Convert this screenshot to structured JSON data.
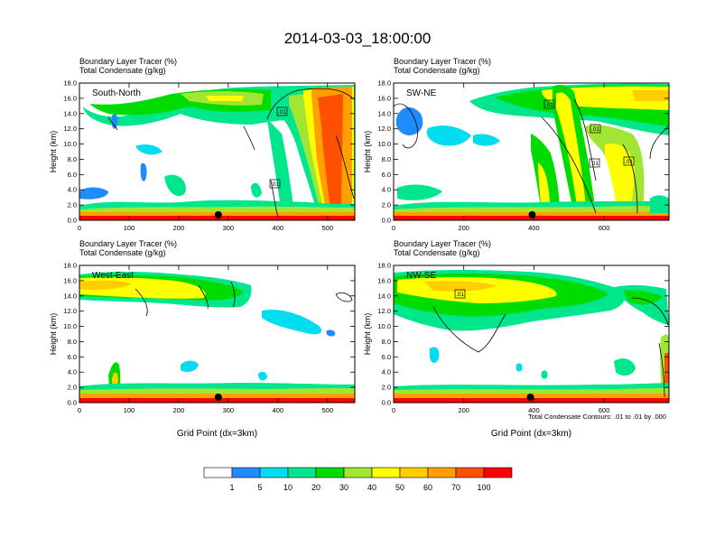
{
  "title": "2014-03-03_18:00:00",
  "footnote": "Total Condensate Contours: .01 to .01 by .000",
  "chart_data": [
    {
      "type": "heatmap",
      "label": "South-North",
      "subtitle_line1": "Boundary Layer Tracer    (%)",
      "subtitle_line2": "Total Condensate    (g/kg)",
      "ylabel": "Height (km)",
      "xlabel": "",
      "xlim": [
        0,
        555
      ],
      "ylim": [
        0,
        18
      ],
      "xticks": [
        "0",
        "100",
        "200",
        "300",
        "400",
        "500"
      ],
      "xtick_values": [
        0,
        100,
        200,
        300,
        400,
        500
      ],
      "yticks": [
        "0.0",
        "2.0",
        "4.0",
        "6.0",
        "8.0",
        "10.0",
        "12.0",
        "14.0",
        "16.0",
        "18.0"
      ],
      "ytick_values": [
        0,
        2,
        4,
        6,
        8,
        10,
        12,
        14,
        16,
        18
      ],
      "contour_labels": [
        ".01",
        ".01"
      ],
      "marker_x": 280,
      "features": [
        {
          "x0": 20,
          "x1": 555,
          "h0": 13,
          "h1": 17.5,
          "level": 3
        },
        {
          "x0": 440,
          "x1": 540,
          "h0": 2,
          "h1": 17.5,
          "level": 8
        },
        {
          "x0": 0,
          "x1": 555,
          "h0": 0,
          "h1": 1.2,
          "level": 9
        }
      ]
    },
    {
      "type": "heatmap",
      "label": "SW-NE",
      "subtitle_line1": "Boundary Layer Tracer    (%)",
      "subtitle_line2": "Total Condensate    (g/kg)",
      "ylabel": "Height (km)",
      "xlabel": "",
      "xlim": [
        0,
        785
      ],
      "ylim": [
        0,
        18
      ],
      "xticks": [
        "0",
        "200",
        "400",
        "600"
      ],
      "xtick_values": [
        0,
        200,
        400,
        600
      ],
      "yticks": [
        "0.0",
        "2.0",
        "4.0",
        "6.0",
        "8.0",
        "10.0",
        "12.0",
        "14.0",
        "16.0",
        "18.0"
      ],
      "ytick_values": [
        0,
        2,
        4,
        6,
        8,
        10,
        12,
        14,
        16,
        18
      ],
      "contour_labels": [
        ".01",
        ".01",
        ".01",
        ".01"
      ],
      "marker_x": 395,
      "features": [
        {
          "x0": 270,
          "x1": 785,
          "h0": 13,
          "h1": 17.5,
          "level": 3
        },
        {
          "x0": 500,
          "x1": 700,
          "h0": 2,
          "h1": 17,
          "level": 5
        },
        {
          "x0": 0,
          "x1": 785,
          "h0": 0,
          "h1": 1.2,
          "level": 9
        }
      ]
    },
    {
      "type": "heatmap",
      "label": "West-East",
      "subtitle_line1": "Boundary Layer Tracer    (%)",
      "subtitle_line2": "Total Condensate    (g/kg)",
      "ylabel": "Height (km)",
      "xlabel": "Grid Point (dx=3km)",
      "xlim": [
        0,
        555
      ],
      "ylim": [
        0,
        18
      ],
      "xticks": [
        "0",
        "100",
        "200",
        "300",
        "400",
        "500"
      ],
      "xtick_values": [
        0,
        100,
        200,
        300,
        400,
        500
      ],
      "yticks": [
        "0.0",
        "2.0",
        "4.0",
        "6.0",
        "8.0",
        "10.0",
        "12.0",
        "14.0",
        "16.0",
        "18.0"
      ],
      "ytick_values": [
        0,
        2,
        4,
        6,
        8,
        10,
        12,
        14,
        16,
        18
      ],
      "contour_labels": [],
      "marker_x": 280,
      "features": [
        {
          "x0": 0,
          "x1": 340,
          "h0": 13,
          "h1": 17.5,
          "level": 3
        },
        {
          "x0": 0,
          "x1": 555,
          "h0": 0,
          "h1": 1.2,
          "level": 9
        }
      ]
    },
    {
      "type": "heatmap",
      "label": "NW-SE",
      "subtitle_line1": "Boundary Layer Tracer    (%)",
      "subtitle_line2": "Total Condensate    (g/kg)",
      "ylabel": "Height (km)",
      "xlabel": "Grid Point (dx=3km)",
      "xlim": [
        0,
        785
      ],
      "ylim": [
        0,
        18
      ],
      "xticks": [
        "0",
        "200",
        "400",
        "600"
      ],
      "xtick_values": [
        0,
        200,
        400,
        600
      ],
      "yticks": [
        "0.0",
        "2.0",
        "4.0",
        "6.0",
        "8.0",
        "10.0",
        "12.0",
        "14.0",
        "16.0",
        "18.0"
      ],
      "ytick_values": [
        0,
        2,
        4,
        6,
        8,
        10,
        12,
        14,
        16,
        18
      ],
      "contour_labels": [
        ".01"
      ],
      "marker_x": 390,
      "features": [
        {
          "x0": 0,
          "x1": 700,
          "h0": 11,
          "h1": 17.8,
          "level": 4
        },
        {
          "x0": 0,
          "x1": 785,
          "h0": 0,
          "h1": 1.2,
          "level": 9
        }
      ]
    }
  ],
  "colorbar": {
    "labels": [
      "1",
      "5",
      "10",
      "20",
      "30",
      "40",
      "50",
      "60",
      "70",
      "100"
    ],
    "colors": [
      "#ffffff",
      "#1e8cff",
      "#00dcf0",
      "#00e68c",
      "#00dc00",
      "#a0e632",
      "#ffff00",
      "#ffcd00",
      "#ffa000",
      "#ff5000",
      "#ff0000"
    ]
  }
}
